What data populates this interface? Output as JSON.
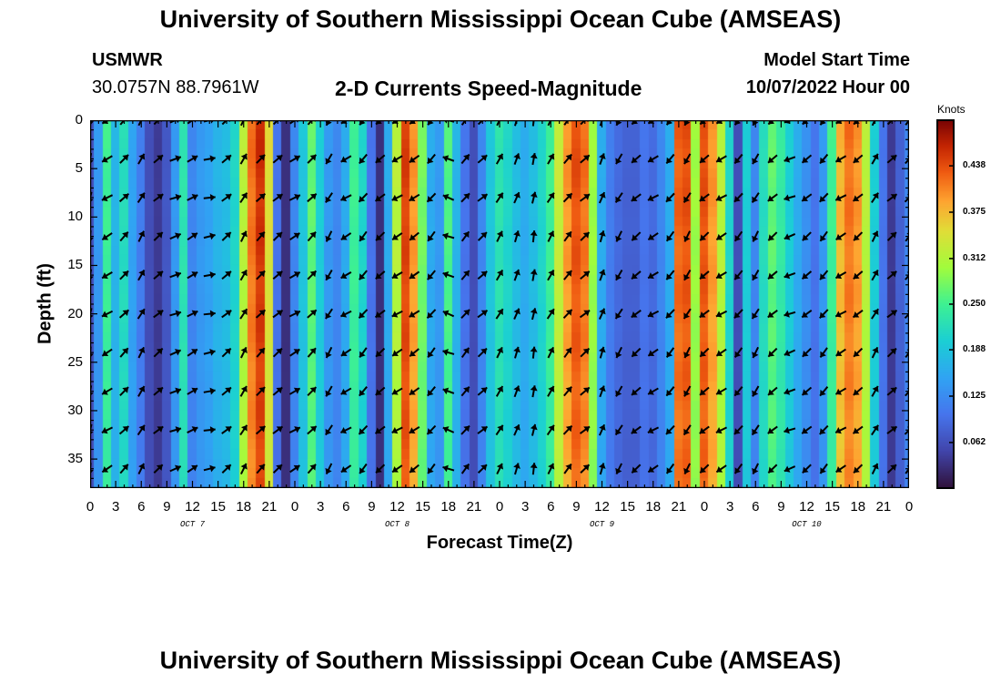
{
  "header": {
    "title_top": "University of Southern Mississippi Ocean Cube (AMSEAS)",
    "title_bottom": "University of Southern Mississippi Ocean Cube (AMSEAS)",
    "station": "USMWR",
    "coords": "30.0757N  88.7961W",
    "subtitle": "2-D Currents Speed-Magnitude",
    "model_start_label": "Model Start Time",
    "model_start_value": "10/07/2022 Hour 00"
  },
  "chart_data": {
    "type": "heatmap",
    "title": "2-D Currents Speed-Magnitude",
    "xlabel": "Forecast Time(Z)",
    "ylabel": "Depth (ft)",
    "x_tick_labels": [
      "0",
      "3",
      "6",
      "9",
      "12",
      "15",
      "18",
      "21",
      "0",
      "3",
      "6",
      "9",
      "12",
      "15",
      "18",
      "21",
      "0",
      "3",
      "6",
      "9",
      "12",
      "15",
      "18",
      "21",
      "0",
      "3",
      "6",
      "9",
      "12",
      "15",
      "18",
      "21",
      "0"
    ],
    "x_range_hours": [
      0,
      96
    ],
    "day_labels": [
      {
        "label": "OCT 7",
        "center_hour": 12
      },
      {
        "label": "OCT 8",
        "center_hour": 36
      },
      {
        "label": "OCT 9",
        "center_hour": 60
      },
      {
        "label": "OCT 10",
        "center_hour": 84
      }
    ],
    "y_ticks": [
      0,
      5,
      10,
      15,
      20,
      25,
      30,
      35
    ],
    "y_range_ft": [
      0,
      38
    ],
    "colorbar": {
      "unit_label": "Knots",
      "ticks": [
        0.062,
        0.125,
        0.188,
        0.25,
        0.312,
        0.375,
        0.438
      ],
      "tick_labels": [
        "0.062",
        "0.125",
        "0.188",
        "0.250",
        "0.312",
        "0.375",
        "0.438"
      ],
      "range": [
        0.0,
        0.5
      ]
    },
    "speed_by_hour": [
      {
        "hour": 0,
        "knots": 0.06
      },
      {
        "hour": 1,
        "knots": 0.14
      },
      {
        "hour": 2,
        "knots": 0.25
      },
      {
        "hour": 3,
        "knots": 0.17
      },
      {
        "hour": 4,
        "knots": 0.22
      },
      {
        "hour": 5,
        "knots": 0.15
      },
      {
        "hour": 6,
        "knots": 0.11
      },
      {
        "hour": 7,
        "knots": 0.06
      },
      {
        "hour": 8,
        "knots": 0.04
      },
      {
        "hour": 9,
        "knots": 0.07
      },
      {
        "hour": 10,
        "knots": 0.14
      },
      {
        "hour": 11,
        "knots": 0.23
      },
      {
        "hour": 12,
        "knots": 0.12
      },
      {
        "hour": 13,
        "knots": 0.14
      },
      {
        "hour": 14,
        "knots": 0.15
      },
      {
        "hour": 15,
        "knots": 0.17
      },
      {
        "hour": 16,
        "knots": 0.18
      },
      {
        "hour": 17,
        "knots": 0.21
      },
      {
        "hour": 18,
        "knots": 0.32
      },
      {
        "hour": 19,
        "knots": 0.42
      },
      {
        "hour": 20,
        "knots": 0.46
      },
      {
        "hour": 21,
        "knots": 0.35
      },
      {
        "hour": 22,
        "knots": 0.1
      },
      {
        "hour": 23,
        "knots": 0.03
      },
      {
        "hour": 24,
        "knots": 0.12
      },
      {
        "hour": 25,
        "knots": 0.19
      },
      {
        "hour": 26,
        "knots": 0.27
      },
      {
        "hour": 27,
        "knots": 0.2
      },
      {
        "hour": 28,
        "knots": 0.14
      },
      {
        "hour": 29,
        "knots": 0.12
      },
      {
        "hour": 30,
        "knots": 0.16
      },
      {
        "hour": 31,
        "knots": 0.25
      },
      {
        "hour": 32,
        "knots": 0.21
      },
      {
        "hour": 33,
        "knots": 0.1
      },
      {
        "hour": 34,
        "knots": 0.03
      },
      {
        "hour": 35,
        "knots": 0.16
      },
      {
        "hour": 36,
        "knots": 0.32
      },
      {
        "hour": 37,
        "knots": 0.45
      },
      {
        "hour": 38,
        "knots": 0.4
      },
      {
        "hour": 39,
        "knots": 0.28
      },
      {
        "hour": 40,
        "knots": 0.16
      },
      {
        "hour": 41,
        "knots": 0.14
      },
      {
        "hour": 42,
        "knots": 0.26
      },
      {
        "hour": 43,
        "knots": 0.17
      },
      {
        "hour": 44,
        "knots": 0.1
      },
      {
        "hour": 45,
        "knots": 0.06
      },
      {
        "hour": 46,
        "knots": 0.12
      },
      {
        "hour": 47,
        "knots": 0.19
      },
      {
        "hour": 48,
        "knots": 0.23
      },
      {
        "hour": 49,
        "knots": 0.21
      },
      {
        "hour": 50,
        "knots": 0.18
      },
      {
        "hour": 51,
        "knots": 0.16
      },
      {
        "hour": 52,
        "knots": 0.18
      },
      {
        "hour": 53,
        "knots": 0.21
      },
      {
        "hour": 54,
        "knots": 0.25
      },
      {
        "hour": 55,
        "knots": 0.33
      },
      {
        "hour": 56,
        "knots": 0.4
      },
      {
        "hour": 57,
        "knots": 0.44
      },
      {
        "hour": 58,
        "knots": 0.42
      },
      {
        "hour": 59,
        "knots": 0.3
      },
      {
        "hour": 60,
        "knots": 0.16
      },
      {
        "hour": 61,
        "knots": 0.11
      },
      {
        "hour": 62,
        "knots": 0.09
      },
      {
        "hour": 63,
        "knots": 0.08
      },
      {
        "hour": 64,
        "knots": 0.08
      },
      {
        "hour": 65,
        "knots": 0.1
      },
      {
        "hour": 66,
        "knots": 0.09
      },
      {
        "hour": 67,
        "knots": 0.12
      },
      {
        "hour": 68,
        "knots": 0.16
      },
      {
        "hour": 69,
        "knots": 0.43
      },
      {
        "hour": 70,
        "knots": 0.44
      },
      {
        "hour": 71,
        "knots": 0.3
      },
      {
        "hour": 72,
        "knots": 0.44
      },
      {
        "hour": 73,
        "knots": 0.4
      },
      {
        "hour": 74,
        "knots": 0.32
      },
      {
        "hour": 75,
        "knots": 0.21
      },
      {
        "hour": 76,
        "knots": 0.06
      },
      {
        "hour": 77,
        "knots": 0.2
      },
      {
        "hour": 78,
        "knots": 0.12
      },
      {
        "hour": 79,
        "knots": 0.22
      },
      {
        "hour": 80,
        "knots": 0.27
      },
      {
        "hour": 81,
        "knots": 0.24
      },
      {
        "hour": 82,
        "knots": 0.2
      },
      {
        "hour": 83,
        "knots": 0.16
      },
      {
        "hour": 84,
        "knots": 0.13
      },
      {
        "hour": 85,
        "knots": 0.1
      },
      {
        "hour": 86,
        "knots": 0.14
      },
      {
        "hour": 87,
        "knots": 0.25
      },
      {
        "hour": 88,
        "knots": 0.38
      },
      {
        "hour": 89,
        "knots": 0.42
      },
      {
        "hour": 90,
        "knots": 0.4
      },
      {
        "hour": 91,
        "knots": 0.32
      },
      {
        "hour": 92,
        "knots": 0.2
      },
      {
        "hour": 93,
        "knots": 0.1
      },
      {
        "hour": 94,
        "knots": 0.04
      },
      {
        "hour": 95,
        "knots": 0.08
      },
      {
        "hour": 96,
        "knots": 0.12
      }
    ],
    "vector_depths_ft": [
      0,
      4,
      8,
      12,
      16,
      20,
      24,
      28,
      32,
      36
    ],
    "vector_hours": [
      0,
      2,
      4,
      6,
      8,
      10,
      12,
      14,
      16,
      18,
      20,
      22,
      24,
      26,
      28,
      30,
      32,
      34,
      36,
      38,
      40,
      42,
      44,
      46,
      48,
      50,
      52,
      54,
      56,
      58,
      60,
      62,
      64,
      66,
      68,
      70,
      72,
      74,
      76,
      78,
      80,
      82,
      84,
      86,
      88,
      90,
      92,
      94,
      96
    ],
    "vector_direction_deg": [
      100,
      150,
      315,
      300,
      320,
      340,
      330,
      350,
      320,
      300,
      315,
      320,
      330,
      315,
      120,
      150,
      130,
      140,
      150,
      145,
      130,
      200,
      310,
      320,
      300,
      290,
      280,
      300,
      310,
      320,
      290,
      120,
      140,
      150,
      130,
      120,
      140,
      150,
      130,
      120,
      140,
      160,
      140,
      130,
      150,
      140,
      300,
      320,
      310
    ]
  }
}
